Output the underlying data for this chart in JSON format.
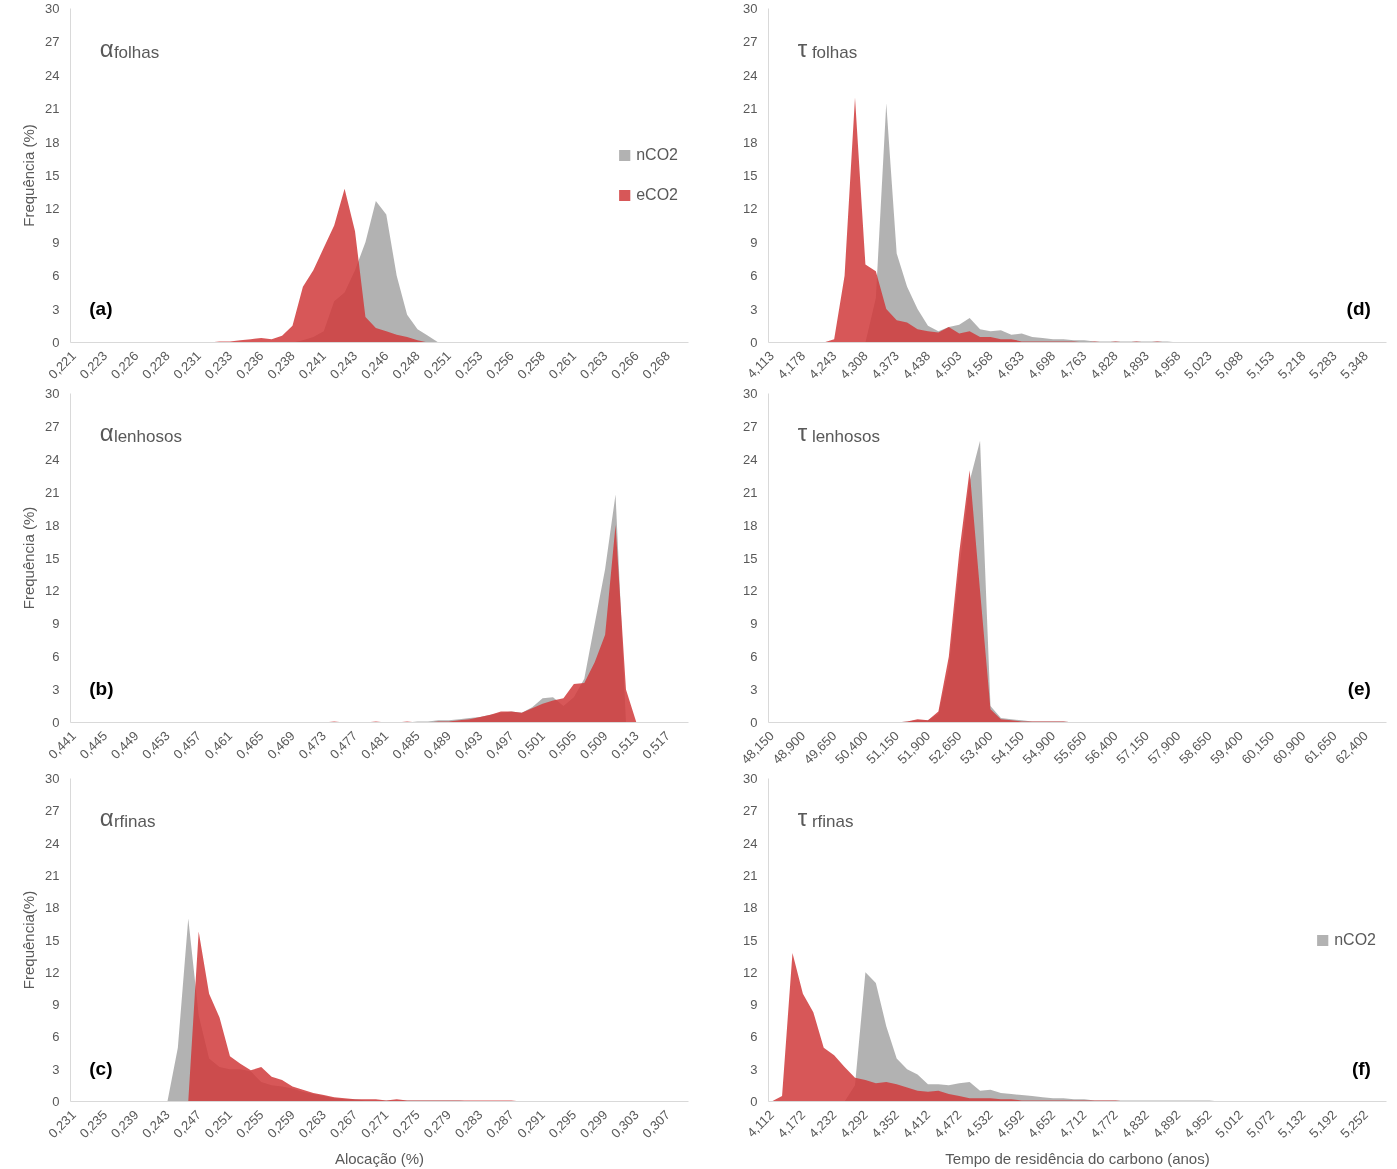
{
  "chart_data": [
    {
      "type": "area",
      "title": "α$_{folhas}$",
      "ylabel": "Frequência (%)",
      "annotations": [
        "(a)"
      ],
      "legend": "right",
      "ylim": [
        0,
        30
      ],
      "yticks": [
        0,
        3,
        6,
        9,
        12,
        15,
        18,
        21,
        24,
        27,
        30
      ],
      "categories": [
        "0,221",
        null,
        null,
        "0,223",
        null,
        null,
        "0,226",
        null,
        null,
        "0,228",
        null,
        null,
        "0,231",
        null,
        null,
        "0,233",
        null,
        null,
        "0,236",
        null,
        null,
        "0,238",
        null,
        null,
        "0,241",
        null,
        null,
        "0,243",
        null,
        null,
        "0,246",
        null,
        null,
        "0,248",
        null,
        null,
        "0,251",
        null,
        null,
        "0,253",
        null,
        null,
        "0,256",
        null,
        null,
        "0,258",
        null,
        null,
        "0,261",
        null,
        null,
        "0,263",
        null,
        null,
        "0,266",
        null,
        null,
        "0,268",
        null,
        null
      ],
      "series": [
        {
          "name": "nCO2",
          "color": "#a5a5a5",
          "values": [
            0,
            0,
            0,
            0,
            0,
            0,
            0,
            0,
            0,
            0,
            0,
            0,
            0,
            0,
            0,
            0,
            0,
            0,
            0,
            0,
            0,
            0,
            0.2,
            0.5,
            1,
            3.7,
            4.5,
            6.5,
            9,
            12.7,
            11.5,
            6,
            2.5,
            1.2,
            0.6,
            0,
            0,
            0,
            0,
            0,
            0,
            0,
            0,
            0,
            0,
            0,
            0,
            0,
            0,
            0,
            0,
            0,
            0,
            0,
            0,
            0,
            0,
            0,
            0,
            0
          ]
        },
        {
          "name": "eCO2",
          "color": "#d0393b",
          "values": [
            0,
            0,
            0,
            0,
            0,
            0,
            0,
            0,
            0,
            0,
            0,
            0,
            0,
            0,
            0.1,
            0.1,
            0.2,
            0.3,
            0.4,
            0.3,
            0.6,
            1.5,
            5,
            6.5,
            8.5,
            10.5,
            13.8,
            10,
            2.3,
            1.3,
            1,
            0.7,
            0.5,
            0.2,
            0,
            0,
            0,
            0,
            0,
            0,
            0,
            0,
            0,
            0,
            0,
            0,
            0,
            0,
            0,
            0,
            0,
            0,
            0,
            0,
            0,
            0,
            0,
            0,
            0,
            0
          ]
        }
      ]
    },
    {
      "type": "area",
      "title": "τ$_{folhas}$",
      "annotations": [
        "(d)"
      ],
      "ylim": [
        0,
        30
      ],
      "yticks": [
        0,
        3,
        6,
        9,
        12,
        15,
        18,
        21,
        24,
        27,
        30
      ],
      "categories": [
        "4,113",
        null,
        null,
        "4,178",
        null,
        null,
        "4,243",
        null,
        null,
        "4,308",
        null,
        null,
        "4,373",
        null,
        null,
        "4,438",
        null,
        null,
        "4,503",
        null,
        null,
        "4,568",
        null,
        null,
        "4,633",
        null,
        null,
        "4,698",
        null,
        null,
        "4,763",
        null,
        null,
        "4,828",
        null,
        null,
        "4,893",
        null,
        null,
        "4,958",
        null,
        null,
        "5,023",
        null,
        null,
        "5,088",
        null,
        null,
        "5,153",
        null,
        null,
        "5,218",
        null,
        null,
        "5,283",
        null,
        null,
        "5,348",
        null,
        null
      ],
      "series": [
        {
          "color": "#a5a5a5",
          "values": [
            0,
            0,
            0,
            0,
            0,
            0,
            0,
            0,
            0,
            0,
            4,
            21.5,
            8,
            5,
            3,
            1.5,
            1,
            1.4,
            1.6,
            2.2,
            1.2,
            1,
            1.1,
            0.7,
            0.8,
            0.5,
            0.4,
            0.3,
            0.3,
            0.2,
            0.2,
            0.1,
            0.1,
            0.1,
            0.1,
            0.1,
            0.1,
            0.1,
            0.1,
            0,
            0,
            0,
            0,
            0,
            0,
            0,
            0,
            0,
            0,
            0,
            0,
            0,
            0,
            0,
            0,
            0,
            0,
            0,
            0,
            0
          ]
        },
        {
          "color": "#d0393b",
          "values": [
            0,
            0,
            0,
            0,
            0,
            0,
            0.3,
            6,
            22,
            7,
            6.4,
            3,
            2,
            1.8,
            1.2,
            1,
            0.9,
            1.4,
            0.8,
            1,
            0.5,
            0.5,
            0.3,
            0.3,
            0.1,
            0.1,
            0.1,
            0.1,
            0.1,
            0.1,
            0,
            0.1,
            0,
            0.1,
            0,
            0.1,
            0,
            0.1,
            0,
            0,
            0,
            0,
            0,
            0,
            0,
            0,
            0,
            0,
            0,
            0,
            0,
            0,
            0,
            0,
            0,
            0,
            0,
            0,
            0,
            0
          ]
        }
      ]
    },
    {
      "type": "area",
      "title": "α$_{lenhosos}$",
      "ylabel": "Frequência (%)",
      "annotations": [
        "(b)"
      ],
      "ylim": [
        0,
        30
      ],
      "yticks": [
        0,
        3,
        6,
        9,
        12,
        15,
        18,
        21,
        24,
        27,
        30
      ],
      "categories": [
        "0,441",
        null,
        null,
        "0,445",
        null,
        null,
        "0,449",
        null,
        null,
        "0,453",
        null,
        null,
        "0,457",
        null,
        null,
        "0,461",
        null,
        null,
        "0,465",
        null,
        null,
        "0,469",
        null,
        null,
        "0,473",
        null,
        null,
        "0,477",
        null,
        null,
        "0,481",
        null,
        null,
        "0,485",
        null,
        null,
        "0,489",
        null,
        null,
        "0,493",
        null,
        null,
        "0,497",
        null,
        null,
        "0,501",
        null,
        null,
        "0,505",
        null,
        null,
        "0,509",
        null,
        null,
        "0,513",
        null,
        null,
        "0,517",
        null,
        null
      ],
      "series": [
        {
          "color": "#a5a5a5",
          "values": [
            0,
            0,
            0,
            0,
            0,
            0,
            0,
            0,
            0,
            0,
            0,
            0,
            0,
            0,
            0,
            0,
            0,
            0,
            0,
            0,
            0,
            0,
            0,
            0,
            0,
            0,
            0,
            0,
            0,
            0,
            0,
            0,
            0,
            0.1,
            0.1,
            0.2,
            0.2,
            0.3,
            0.4,
            0.5,
            0.7,
            0.9,
            1,
            0.9,
            1.4,
            2.2,
            2.3,
            1.5,
            2.3,
            4,
            9,
            14,
            20.8,
            0,
            0,
            0,
            0,
            0,
            0,
            0
          ]
        },
        {
          "color": "#d0393b",
          "values": [
            0,
            0,
            0,
            0,
            0,
            0,
            0,
            0,
            0,
            0,
            0,
            0,
            0,
            0,
            0,
            0,
            0,
            0,
            0,
            0,
            0,
            0,
            0,
            0,
            0,
            0.1,
            0,
            0,
            0,
            0.1,
            0,
            0,
            0.1,
            0,
            0,
            0.1,
            0.1,
            0.2,
            0.3,
            0.5,
            0.7,
            1,
            1,
            0.9,
            1.3,
            1.7,
            2,
            2.2,
            3.5,
            3.6,
            5.5,
            8,
            18,
            3,
            0,
            0,
            0,
            0,
            0,
            0
          ]
        }
      ]
    },
    {
      "type": "area",
      "title": "τ$_{lenhosos}$",
      "annotations": [
        "(e)"
      ],
      "ylim": [
        0,
        30
      ],
      "yticks": [
        0,
        3,
        6,
        9,
        12,
        15,
        18,
        21,
        24,
        27,
        30
      ],
      "categories": [
        "48,150",
        null,
        null,
        "48,900",
        null,
        null,
        "49,650",
        null,
        null,
        "50,400",
        null,
        null,
        "51,150",
        null,
        null,
        "51,900",
        null,
        null,
        "52,650",
        null,
        null,
        "53,400",
        null,
        null,
        "54,150",
        null,
        null,
        "54,900",
        null,
        null,
        "55,650",
        null,
        null,
        "56,400",
        null,
        null,
        "57,150",
        null,
        null,
        "57,900",
        null,
        null,
        "58,650",
        null,
        null,
        "59,400",
        null,
        null,
        "60,150",
        null,
        null,
        "60,900",
        null,
        null,
        "61,650",
        null,
        null,
        "62,400",
        null,
        null
      ],
      "series": [
        {
          "color": "#a5a5a5",
          "values": [
            0,
            0,
            0,
            0,
            0,
            0,
            0,
            0,
            0,
            0,
            0,
            0,
            0,
            0.1,
            0.2,
            0.2,
            0.8,
            5,
            14,
            22,
            25.7,
            1.5,
            0.4,
            0.3,
            0.2,
            0.1,
            0.1,
            0.1,
            0.1,
            0,
            0,
            0,
            0,
            0,
            0,
            0,
            0,
            0,
            0,
            0,
            0,
            0,
            0,
            0,
            0,
            0,
            0,
            0,
            0,
            0,
            0,
            0,
            0,
            0,
            0,
            0,
            0,
            0,
            0,
            0
          ]
        },
        {
          "color": "#d0393b",
          "values": [
            0,
            0,
            0,
            0,
            0,
            0,
            0,
            0,
            0,
            0,
            0,
            0,
            0,
            0.1,
            0.3,
            0.2,
            1,
            6,
            15.5,
            23,
            12,
            1.2,
            0.3,
            0.2,
            0.1,
            0.1,
            0.1,
            0.1,
            0.1,
            0,
            0,
            0,
            0,
            0,
            0,
            0,
            0,
            0,
            0,
            0,
            0,
            0,
            0,
            0,
            0,
            0,
            0,
            0,
            0,
            0,
            0,
            0,
            0,
            0,
            0,
            0,
            0,
            0,
            0,
            0
          ]
        }
      ]
    },
    {
      "type": "area",
      "title": "α$_{rfinas}$",
      "ylabel": "Frequência(%)",
      "xlabel": "Alocação (%)",
      "annotations": [
        "(c)"
      ],
      "ylim": [
        0,
        30
      ],
      "yticks": [
        0,
        3,
        6,
        9,
        12,
        15,
        18,
        21,
        24,
        27,
        30
      ],
      "categories": [
        "0,231",
        null,
        null,
        "0,235",
        null,
        null,
        "0,239",
        null,
        null,
        "0,243",
        null,
        null,
        "0,247",
        null,
        null,
        "0,251",
        null,
        null,
        "0,255",
        null,
        null,
        "0,259",
        null,
        null,
        "0,263",
        null,
        null,
        "0,267",
        null,
        null,
        "0,271",
        null,
        null,
        "0,275",
        null,
        null,
        "0,279",
        null,
        null,
        "0,283",
        null,
        null,
        "0,287",
        null,
        null,
        "0,291",
        null,
        null,
        "0,295",
        null,
        null,
        "0,299",
        null,
        null,
        "0,303",
        null,
        null,
        "0,307",
        null,
        null
      ],
      "series": [
        {
          "color": "#a5a5a5",
          "values": [
            0,
            0,
            0,
            0,
            0,
            0,
            0,
            0,
            0,
            0,
            5,
            17,
            8,
            4,
            3.2,
            3,
            3,
            2.8,
            1.8,
            1.5,
            1.4,
            1.2,
            0.9,
            0.7,
            0.5,
            0.3,
            0.2,
            0.2,
            0.1,
            0.1,
            0.1,
            0.1,
            0.1,
            0.1,
            0.1,
            0.1,
            0.1,
            0.1,
            0,
            0,
            0,
            0,
            0,
            0,
            0,
            0,
            0,
            0,
            0,
            0,
            0,
            0,
            0,
            0,
            0,
            0,
            0,
            0,
            0,
            0
          ]
        },
        {
          "color": "#d0393b",
          "values": [
            0,
            0,
            0,
            0,
            0,
            0,
            0,
            0,
            0,
            0,
            0,
            0,
            15.8,
            10,
            7.8,
            4.2,
            3.5,
            2.9,
            3.2,
            2.3,
            2,
            1.4,
            1.1,
            0.8,
            0.6,
            0.4,
            0.3,
            0.2,
            0.2,
            0.2,
            0.1,
            0.2,
            0.1,
            0.1,
            0.1,
            0.1,
            0.1,
            0.1,
            0.1,
            0.1,
            0.1,
            0.1,
            0.1,
            0,
            0,
            0,
            0,
            0,
            0,
            0,
            0,
            0,
            0,
            0,
            0,
            0,
            0,
            0,
            0,
            0
          ]
        }
      ]
    },
    {
      "type": "area",
      "title": "τ$_{rfinas}$",
      "xlabel": "Tempo de residência do carbono (anos)",
      "annotations": [
        "(f)"
      ],
      "legend": "right",
      "ylim": [
        0,
        30
      ],
      "yticks": [
        0,
        3,
        6,
        9,
        12,
        15,
        18,
        21,
        24,
        27,
        30
      ],
      "categories": [
        "4,112",
        null,
        null,
        "4,172",
        null,
        null,
        "4,232",
        null,
        null,
        "4,292",
        null,
        null,
        "4,352",
        null,
        null,
        "4,412",
        null,
        null,
        "4,472",
        null,
        null,
        "4,532",
        null,
        null,
        "4,592",
        null,
        null,
        "4,652",
        null,
        null,
        "4,712",
        null,
        null,
        "4,772",
        null,
        null,
        "4,832",
        null,
        null,
        "4,892",
        null,
        null,
        "4,952",
        null,
        null,
        "5,012",
        null,
        null,
        "5,072",
        null,
        null,
        "5,132",
        null,
        null,
        "5,192",
        null,
        null,
        "5,252",
        null,
        null
      ],
      "series": [
        {
          "name": "nCO2",
          "color": "#a5a5a5",
          "values": [
            0,
            0,
            0,
            0,
            0,
            0,
            0,
            0,
            1.5,
            12,
            11,
            7,
            4,
            3,
            2.5,
            1.6,
            1.6,
            1.5,
            1.7,
            1.8,
            1,
            1.1,
            0.8,
            0.7,
            0.6,
            0.5,
            0.4,
            0.3,
            0.3,
            0.2,
            0.2,
            0.1,
            0.1,
            0.1,
            0.1,
            0.1,
            0.1,
            0.1,
            0.1,
            0.1,
            0.1,
            0.1,
            0.1,
            0,
            0,
            0,
            0,
            0,
            0,
            0,
            0,
            0,
            0,
            0,
            0,
            0,
            0,
            0,
            0,
            0
          ]
        },
        {
          "color": "#d0393b",
          "values": [
            0,
            0.5,
            13.8,
            10,
            8.3,
            5,
            4.3,
            3.2,
            2.2,
            2,
            1.7,
            1.8,
            1.6,
            1.3,
            1,
            0.9,
            1,
            0.7,
            0.5,
            0.3,
            0.3,
            0.3,
            0.2,
            0.2,
            0.1,
            0.1,
            0.1,
            0.1,
            0.1,
            0.1,
            0.1,
            0.1,
            0.1,
            0.1,
            0,
            0,
            0,
            0,
            0,
            0,
            0,
            0,
            0,
            0,
            0,
            0,
            0,
            0,
            0,
            0,
            0,
            0,
            0,
            0,
            0,
            0,
            0,
            0,
            0,
            0
          ]
        }
      ]
    }
  ]
}
